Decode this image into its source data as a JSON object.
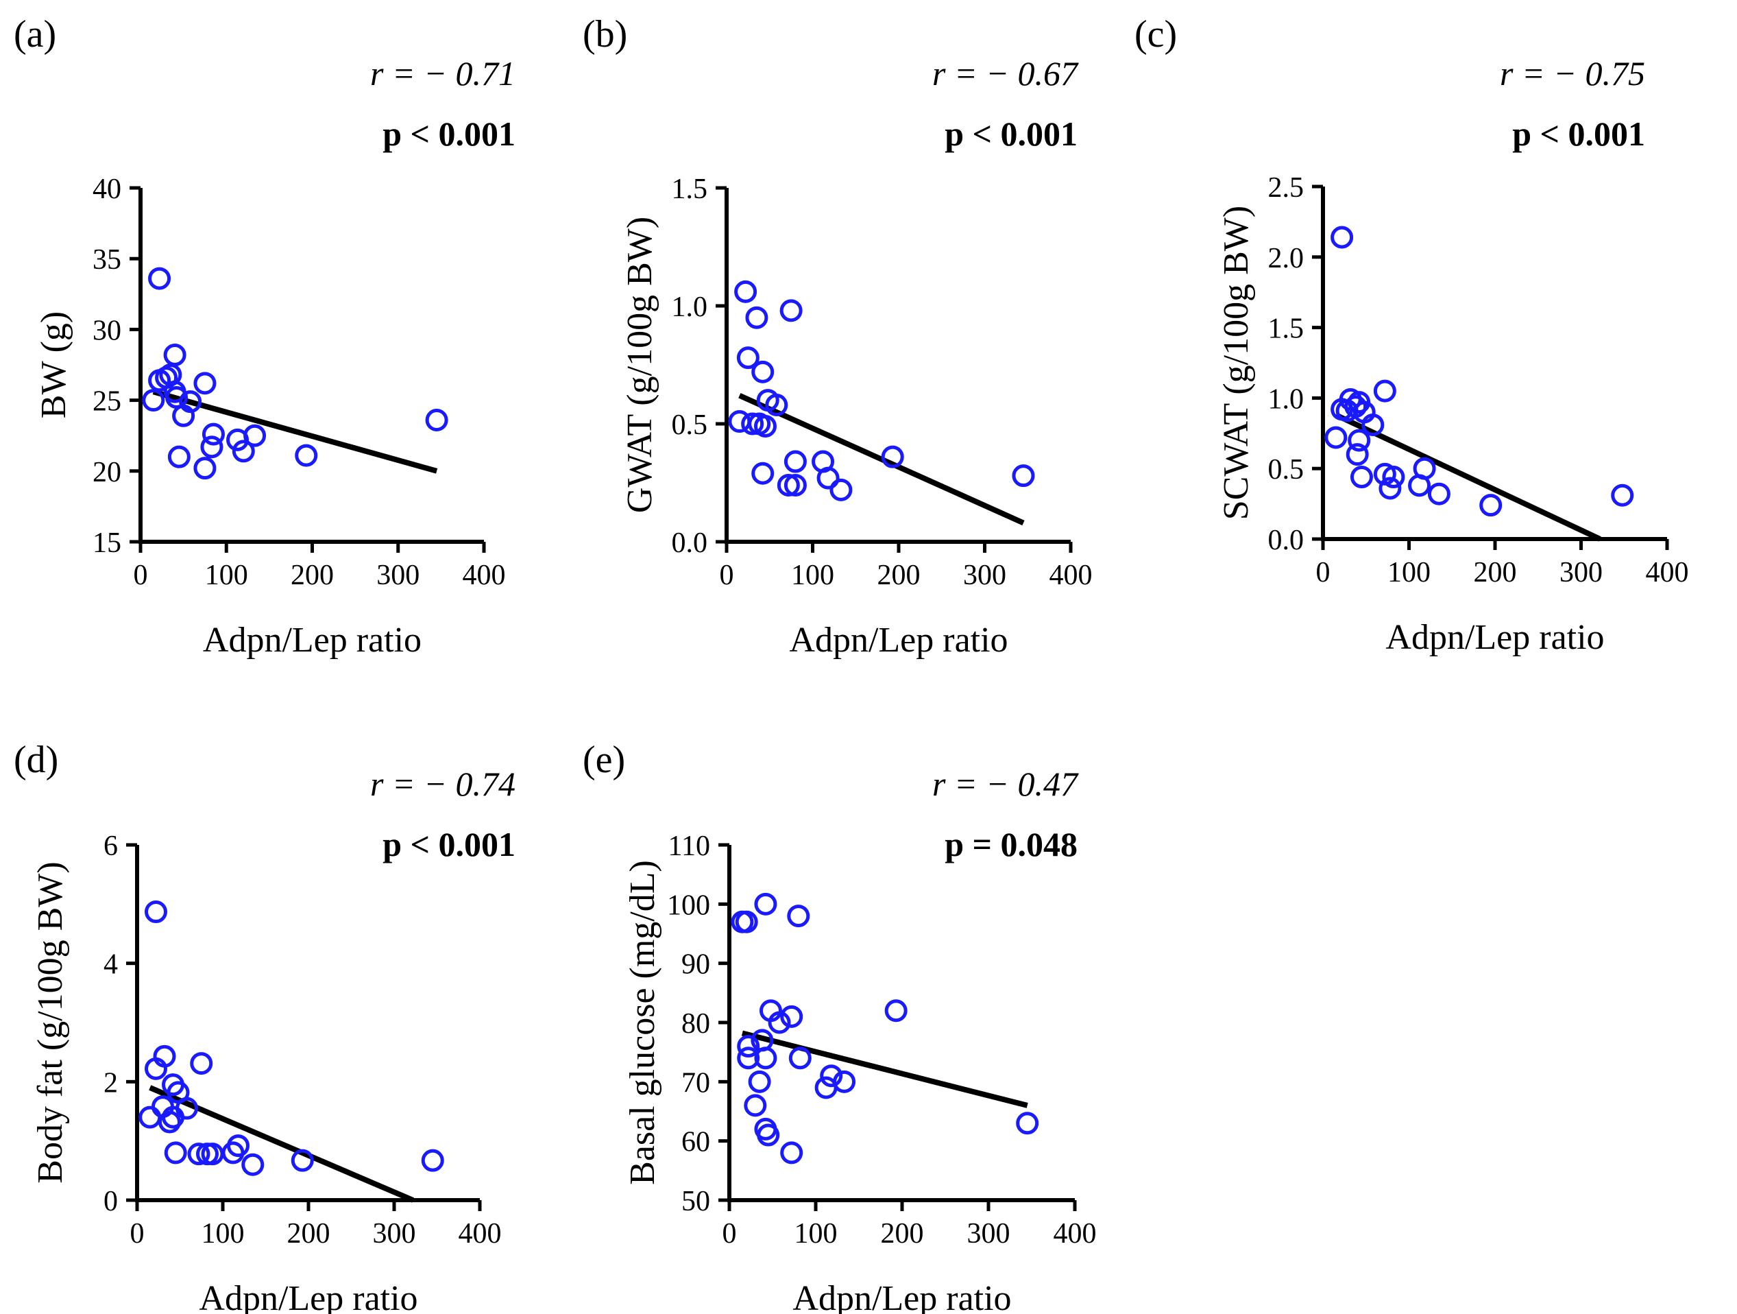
{
  "chart_data": [
    {
      "type": "scatter",
      "panel": "(a)",
      "xlabel": "Adpn/Lep ratio",
      "ylabel": "BW (g)",
      "xlim": [
        0,
        400
      ],
      "ylim": [
        15,
        40
      ],
      "xticks": [
        0,
        100,
        200,
        300,
        400
      ],
      "yticks": [
        15,
        20,
        25,
        30,
        35,
        40
      ],
      "x_tick_labels": [
        "0",
        "100",
        "200",
        "300",
        "400"
      ],
      "y_tick_labels": [
        "15",
        "20",
        "25",
        "30",
        "35",
        "40"
      ],
      "r_text": "r = − 0.71",
      "p_text": "p < 0.001",
      "marker_color": "#1a1aff",
      "line_color": "#000000",
      "points": [
        {
          "x": 22,
          "y": 33.6
        },
        {
          "x": 15,
          "y": 25.0
        },
        {
          "x": 22,
          "y": 26.4
        },
        {
          "x": 30,
          "y": 26.6
        },
        {
          "x": 35,
          "y": 26.8
        },
        {
          "x": 40,
          "y": 28.2
        },
        {
          "x": 40,
          "y": 25.6
        },
        {
          "x": 42,
          "y": 25.2
        },
        {
          "x": 50,
          "y": 23.9
        },
        {
          "x": 45,
          "y": 21.0
        },
        {
          "x": 58,
          "y": 24.9
        },
        {
          "x": 75,
          "y": 26.2
        },
        {
          "x": 75,
          "y": 20.2
        },
        {
          "x": 85,
          "y": 22.6
        },
        {
          "x": 83,
          "y": 21.7
        },
        {
          "x": 113,
          "y": 22.2
        },
        {
          "x": 120,
          "y": 21.4
        },
        {
          "x": 133,
          "y": 22.5
        },
        {
          "x": 193,
          "y": 21.1
        },
        {
          "x": 345,
          "y": 23.6
        }
      ],
      "fit_line": {
        "x": [
          15,
          345
        ],
        "y": [
          25.6,
          20.0
        ]
      }
    },
    {
      "type": "scatter",
      "panel": "(b)",
      "xlabel": "Adpn/Lep ratio",
      "ylabel": "GWAT (g/100g BW)",
      "xlim": [
        0,
        400
      ],
      "ylim": [
        0.0,
        1.5
      ],
      "xticks": [
        0,
        100,
        200,
        300,
        400
      ],
      "yticks": [
        0.0,
        0.5,
        1.0,
        1.5
      ],
      "x_tick_labels": [
        "0",
        "100",
        "200",
        "300",
        "400"
      ],
      "y_tick_labels": [
        "0.0",
        "0.5",
        "1.0",
        "1.5"
      ],
      "r_text": "r = − 0.67",
      "p_text": "p < 0.001",
      "marker_color": "#1a1aff",
      "line_color": "#000000",
      "points": [
        {
          "x": 22,
          "y": 1.06
        },
        {
          "x": 35,
          "y": 0.95
        },
        {
          "x": 75,
          "y": 0.98
        },
        {
          "x": 25,
          "y": 0.78
        },
        {
          "x": 42,
          "y": 0.72
        },
        {
          "x": 15,
          "y": 0.51
        },
        {
          "x": 30,
          "y": 0.5
        },
        {
          "x": 38,
          "y": 0.5
        },
        {
          "x": 45,
          "y": 0.49
        },
        {
          "x": 48,
          "y": 0.6
        },
        {
          "x": 58,
          "y": 0.58
        },
        {
          "x": 42,
          "y": 0.29
        },
        {
          "x": 72,
          "y": 0.24
        },
        {
          "x": 80,
          "y": 0.24
        },
        {
          "x": 80,
          "y": 0.34
        },
        {
          "x": 112,
          "y": 0.34
        },
        {
          "x": 118,
          "y": 0.27
        },
        {
          "x": 133,
          "y": 0.22
        },
        {
          "x": 193,
          "y": 0.36
        },
        {
          "x": 345,
          "y": 0.28
        }
      ],
      "fit_line": {
        "x": [
          15,
          345
        ],
        "y": [
          0.62,
          0.08
        ]
      }
    },
    {
      "type": "scatter",
      "panel": "(c)",
      "xlabel": "Adpn/Lep ratio",
      "ylabel": "SCWAT (g/100g BW)",
      "xlim": [
        0,
        400
      ],
      "ylim": [
        0.0,
        2.5
      ],
      "xticks": [
        0,
        100,
        200,
        300,
        400
      ],
      "yticks": [
        0.0,
        0.5,
        1.0,
        1.5,
        2.0,
        2.5
      ],
      "x_tick_labels": [
        "0",
        "100",
        "200",
        "300",
        "400"
      ],
      "y_tick_labels": [
        "0.0",
        "0.5",
        "1.0",
        "1.5",
        "2.0",
        "2.5"
      ],
      "r_text": "r = − 0.75",
      "p_text": "p < 0.001",
      "marker_color": "#1a1aff",
      "line_color": "#000000",
      "points": [
        {
          "x": 22,
          "y": 2.14
        },
        {
          "x": 15,
          "y": 0.72
        },
        {
          "x": 22,
          "y": 0.92
        },
        {
          "x": 28,
          "y": 0.91
        },
        {
          "x": 32,
          "y": 0.99
        },
        {
          "x": 38,
          "y": 0.94
        },
        {
          "x": 42,
          "y": 0.97
        },
        {
          "x": 48,
          "y": 0.9
        },
        {
          "x": 58,
          "y": 0.81
        },
        {
          "x": 42,
          "y": 0.7
        },
        {
          "x": 40,
          "y": 0.6
        },
        {
          "x": 45,
          "y": 0.44
        },
        {
          "x": 72,
          "y": 1.05
        },
        {
          "x": 72,
          "y": 0.46
        },
        {
          "x": 78,
          "y": 0.36
        },
        {
          "x": 82,
          "y": 0.44
        },
        {
          "x": 112,
          "y": 0.38
        },
        {
          "x": 118,
          "y": 0.5
        },
        {
          "x": 135,
          "y": 0.32
        },
        {
          "x": 195,
          "y": 0.24
        },
        {
          "x": 348,
          "y": 0.31
        }
      ],
      "fit_line": {
        "x": [
          15,
          322
        ],
        "y": [
          0.88,
          0.0
        ]
      }
    },
    {
      "type": "scatter",
      "panel": "(d)",
      "xlabel": "Adpn/Lep ratio",
      "ylabel": "Body fat (g/100g BW)",
      "xlim": [
        0,
        400
      ],
      "ylim": [
        0,
        6
      ],
      "xticks": [
        0,
        100,
        200,
        300,
        400
      ],
      "yticks": [
        0,
        2,
        4,
        6
      ],
      "x_tick_labels": [
        "0",
        "100",
        "200",
        "300",
        "400"
      ],
      "y_tick_labels": [
        "0",
        "2",
        "4",
        "6"
      ],
      "r_text": "r = − 0.74",
      "p_text": "p < 0.001",
      "marker_color": "#1a1aff",
      "line_color": "#000000",
      "points": [
        {
          "x": 22,
          "y": 4.87
        },
        {
          "x": 15,
          "y": 1.4
        },
        {
          "x": 22,
          "y": 2.22
        },
        {
          "x": 32,
          "y": 2.43
        },
        {
          "x": 30,
          "y": 1.58
        },
        {
          "x": 38,
          "y": 1.32
        },
        {
          "x": 42,
          "y": 1.4
        },
        {
          "x": 42,
          "y": 1.95
        },
        {
          "x": 48,
          "y": 1.82
        },
        {
          "x": 58,
          "y": 1.55
        },
        {
          "x": 45,
          "y": 0.8
        },
        {
          "x": 72,
          "y": 0.78
        },
        {
          "x": 75,
          "y": 2.31
        },
        {
          "x": 82,
          "y": 0.78
        },
        {
          "x": 88,
          "y": 0.78
        },
        {
          "x": 112,
          "y": 0.8
        },
        {
          "x": 118,
          "y": 0.92
        },
        {
          "x": 135,
          "y": 0.6
        },
        {
          "x": 193,
          "y": 0.67
        },
        {
          "x": 345,
          "y": 0.67
        }
      ],
      "fit_line": {
        "x": [
          15,
          322
        ],
        "y": [
          1.9,
          0.0
        ]
      }
    },
    {
      "type": "scatter",
      "panel": "(e)",
      "xlabel": "Adpn/Lep ratio",
      "ylabel": "Basal glucose (mg/dL)",
      "xlim": [
        0,
        400
      ],
      "ylim": [
        50,
        110
      ],
      "xticks": [
        0,
        100,
        200,
        300,
        400
      ],
      "yticks": [
        50,
        60,
        70,
        80,
        90,
        100,
        110
      ],
      "x_tick_labels": [
        "0",
        "100",
        "200",
        "300",
        "400"
      ],
      "y_tick_labels": [
        "50",
        "60",
        "70",
        "80",
        "90",
        "100",
        "110"
      ],
      "r_text": "r = − 0.47",
      "p_text": "p = 0.048",
      "marker_color": "#1a1aff",
      "line_color": "#000000",
      "points": [
        {
          "x": 15,
          "y": 97.0
        },
        {
          "x": 20,
          "y": 97.0
        },
        {
          "x": 42,
          "y": 100.0
        },
        {
          "x": 80,
          "y": 98.0
        },
        {
          "x": 22,
          "y": 76.0
        },
        {
          "x": 22,
          "y": 74.0
        },
        {
          "x": 38,
          "y": 77.0
        },
        {
          "x": 42,
          "y": 74.0
        },
        {
          "x": 30,
          "y": 66.0
        },
        {
          "x": 35,
          "y": 70.0
        },
        {
          "x": 42,
          "y": 62.0
        },
        {
          "x": 45,
          "y": 61.0
        },
        {
          "x": 48,
          "y": 82.0
        },
        {
          "x": 58,
          "y": 80.0
        },
        {
          "x": 72,
          "y": 81.0
        },
        {
          "x": 72,
          "y": 58.0
        },
        {
          "x": 82,
          "y": 74.0
        },
        {
          "x": 112,
          "y": 69.0
        },
        {
          "x": 118,
          "y": 71.0
        },
        {
          "x": 133,
          "y": 70.0
        },
        {
          "x": 193,
          "y": 82.0
        },
        {
          "x": 345,
          "y": 63.0
        }
      ],
      "fit_line": {
        "x": [
          15,
          345
        ],
        "y": [
          78.2,
          66.0
        ]
      }
    }
  ]
}
